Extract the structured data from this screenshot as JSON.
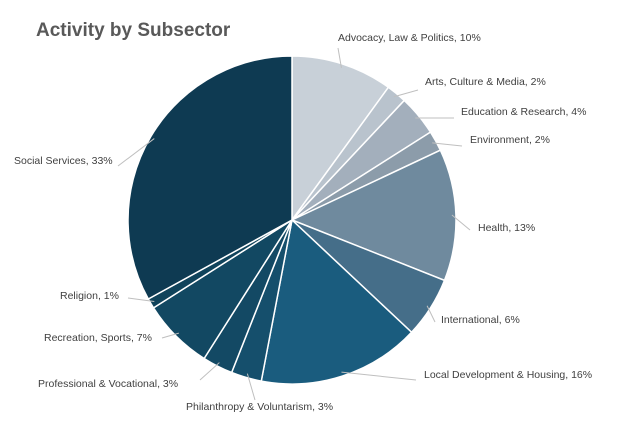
{
  "chart_data": {
    "type": "pie",
    "title": "Activity by Subsector",
    "slices": [
      {
        "label": "Advocacy, Law & Politics",
        "value": 10,
        "color": "#c8d0d8",
        "text": "Advocacy, Law & Politics, 10%"
      },
      {
        "label": "Arts, Culture & Media",
        "value": 2,
        "color": "#b9c3cd",
        "text": "Arts, Culture & Media, 2%"
      },
      {
        "label": "Education & Research",
        "value": 4,
        "color": "#a3afbc",
        "text": "Education & Research, 4%"
      },
      {
        "label": "Environment",
        "value": 2,
        "color": "#8c9caa",
        "text": "Environment, 2%"
      },
      {
        "label": "Health",
        "value": 13,
        "color": "#6f8a9e",
        "text": "Health, 13%"
      },
      {
        "label": "International",
        "value": 6,
        "color": "#456e89",
        "text": "International, 6%"
      },
      {
        "label": "Local Development & Housing",
        "value": 16,
        "color": "#1a5c7e",
        "text": "Local Development & Housing, 16%"
      },
      {
        "label": "Philanthropy & Voluntarism",
        "value": 3,
        "color": "#154f6c",
        "text": "Philanthropy & Voluntarism, 3%"
      },
      {
        "label": "Professional & Vocational",
        "value": 3,
        "color": "#134964",
        "text": "Professional & Vocational, 3%"
      },
      {
        "label": "Recreation, Sports",
        "value": 7,
        "color": "#124862",
        "text": "Recreation, Sports, 7%"
      },
      {
        "label": "Religion",
        "value": 1,
        "color": "#10435b",
        "text": "Religion, 1%"
      },
      {
        "label": "Social Services",
        "value": 33,
        "color": "#0e3a52",
        "text": "Social Services, 33%"
      }
    ]
  }
}
